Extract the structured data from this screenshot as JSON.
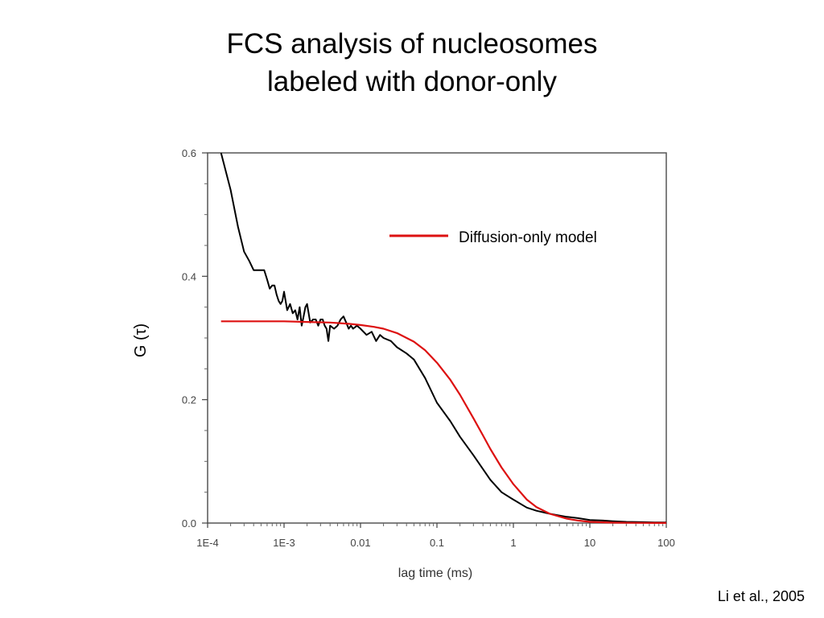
{
  "slide": {
    "title_line_1": "FCS analysis of nucleosomes",
    "title_line_2": "labeled with donor-only",
    "citation": "Li et al., 2005"
  },
  "chart_data": {
    "type": "line",
    "xlabel": "lag time (ms)",
    "ylabel": "G (τ)",
    "x_scale": "log",
    "xlim": [
      0.0001,
      100
    ],
    "ylim": [
      0.0,
      0.6
    ],
    "x_ticks": [
      0.0001,
      0.001,
      0.01,
      0.1,
      1,
      10,
      100
    ],
    "x_tick_labels": [
      "1E-4",
      "1E-3",
      "0.01",
      "0.1",
      "1",
      "10",
      "100"
    ],
    "y_ticks": [
      0.0,
      0.2,
      0.4,
      0.6
    ],
    "y_tick_labels": [
      "0.0",
      "0.2",
      "0.4",
      "0.6"
    ],
    "grid": false,
    "legend_position": "top-right",
    "colors": {
      "data": "#000000",
      "model": "#dd1111"
    },
    "series": [
      {
        "name": "",
        "color": "#000000",
        "x": [
          0.00015,
          0.0002,
          0.00025,
          0.0003,
          0.00035,
          0.0004,
          0.00045,
          0.0005,
          0.00055,
          0.0006,
          0.00065,
          0.0007,
          0.00075,
          0.0008,
          0.00085,
          0.0009,
          0.00095,
          0.001,
          0.0011,
          0.0012,
          0.0013,
          0.0014,
          0.0015,
          0.0016,
          0.0017,
          0.0018,
          0.0019,
          0.002,
          0.0022,
          0.0024,
          0.0026,
          0.0028,
          0.003,
          0.0032,
          0.0034,
          0.0036,
          0.0038,
          0.004,
          0.0045,
          0.005,
          0.0055,
          0.006,
          0.0065,
          0.007,
          0.0075,
          0.008,
          0.009,
          0.01,
          0.012,
          0.014,
          0.016,
          0.018,
          0.02,
          0.025,
          0.03,
          0.04,
          0.05,
          0.07,
          0.1,
          0.15,
          0.2,
          0.3,
          0.5,
          0.7,
          1,
          1.5,
          2,
          3,
          5,
          7,
          10,
          15,
          20,
          30,
          50,
          70,
          100
        ],
        "y": [
          0.6,
          0.54,
          0.48,
          0.44,
          0.425,
          0.41,
          0.41,
          0.41,
          0.41,
          0.395,
          0.38,
          0.385,
          0.385,
          0.37,
          0.36,
          0.355,
          0.36,
          0.375,
          0.345,
          0.355,
          0.34,
          0.345,
          0.33,
          0.35,
          0.32,
          0.335,
          0.35,
          0.355,
          0.325,
          0.33,
          0.33,
          0.32,
          0.33,
          0.33,
          0.32,
          0.315,
          0.295,
          0.32,
          0.315,
          0.32,
          0.33,
          0.335,
          0.325,
          0.315,
          0.32,
          0.315,
          0.32,
          0.315,
          0.305,
          0.31,
          0.295,
          0.305,
          0.3,
          0.295,
          0.285,
          0.275,
          0.265,
          0.235,
          0.195,
          0.165,
          0.14,
          0.11,
          0.07,
          0.05,
          0.038,
          0.025,
          0.02,
          0.015,
          0.01,
          0.008,
          0.005,
          0.004,
          0.003,
          0.002,
          0.0015,
          0.001,
          0.001
        ]
      },
      {
        "name": "Diffusion-only model",
        "color": "#dd1111",
        "x": [
          0.00015,
          0.0003,
          0.0006,
          0.001,
          0.002,
          0.004,
          0.007,
          0.01,
          0.015,
          0.02,
          0.03,
          0.05,
          0.07,
          0.1,
          0.15,
          0.2,
          0.3,
          0.4,
          0.5,
          0.7,
          1,
          1.5,
          2,
          3,
          5,
          7,
          10,
          15,
          20,
          30,
          50,
          70,
          100
        ],
        "y": [
          0.327,
          0.327,
          0.327,
          0.327,
          0.326,
          0.325,
          0.323,
          0.321,
          0.318,
          0.315,
          0.308,
          0.294,
          0.28,
          0.26,
          0.232,
          0.208,
          0.17,
          0.142,
          0.12,
          0.09,
          0.063,
          0.038,
          0.026,
          0.015,
          0.007,
          0.004,
          0.002,
          0.0012,
          0.0007,
          0.0004,
          0.0002,
          0.0001,
          0.0001
        ]
      }
    ]
  }
}
